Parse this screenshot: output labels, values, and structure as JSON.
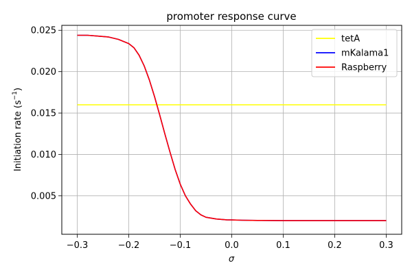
{
  "chart_data": {
    "type": "line",
    "title": "promoter response curve",
    "xlabel": "σ",
    "ylabel": "Initiation rate (s",
    "ylabel_sup": "−1",
    "ylabel_close": ")",
    "xlim": [
      -0.33,
      0.33
    ],
    "ylim": [
      0.00035,
      0.0256
    ],
    "xticks": [
      -0.3,
      -0.2,
      -0.1,
      0.0,
      0.1,
      0.2,
      0.3
    ],
    "xtick_labels": [
      "−0.3",
      "−0.2",
      "−0.1",
      "0.0",
      "0.1",
      "0.2",
      "0.3"
    ],
    "yticks": [
      0.005,
      0.01,
      0.015,
      0.02,
      0.025
    ],
    "ytick_labels": [
      "0.005",
      "0.010",
      "0.015",
      "0.020",
      "0.025"
    ],
    "grid": true,
    "legend_position": "top-right",
    "x": [
      -0.3,
      -0.28,
      -0.26,
      -0.24,
      -0.22,
      -0.2,
      -0.19,
      -0.18,
      -0.17,
      -0.16,
      -0.15,
      -0.14,
      -0.13,
      -0.12,
      -0.11,
      -0.1,
      -0.09,
      -0.08,
      -0.07,
      -0.06,
      -0.05,
      -0.04,
      -0.03,
      -0.02,
      -0.01,
      0.0,
      0.02,
      0.05,
      0.1,
      0.15,
      0.2,
      0.25,
      0.3
    ],
    "series": [
      {
        "name": "tetA",
        "color": "#ffff00",
        "values": [
          0.016,
          0.016,
          0.016,
          0.016,
          0.016,
          0.016,
          0.016,
          0.016,
          0.016,
          0.016,
          0.016,
          0.016,
          0.016,
          0.016,
          0.016,
          0.016,
          0.016,
          0.016,
          0.016,
          0.016,
          0.016,
          0.016,
          0.016,
          0.016,
          0.016,
          0.016,
          0.016,
          0.016,
          0.016,
          0.016,
          0.016,
          0.016,
          0.016
        ]
      },
      {
        "name": "mKalama1",
        "color": "#0000ff",
        "values": [
          0.0244,
          0.0244,
          0.0243,
          0.0242,
          0.0239,
          0.0234,
          0.0229,
          0.022,
          0.0207,
          0.019,
          0.017,
          0.0148,
          0.0125,
          0.0103,
          0.0082,
          0.0064,
          0.005,
          0.004,
          0.0032,
          0.0027,
          0.0024,
          0.0023,
          0.0022,
          0.00215,
          0.0021,
          0.00208,
          0.00205,
          0.00202,
          0.002,
          0.002,
          0.002,
          0.002,
          0.002
        ]
      },
      {
        "name": "Raspberry",
        "color": "#ff0000",
        "values": [
          0.0244,
          0.0244,
          0.0243,
          0.0242,
          0.0239,
          0.0234,
          0.0229,
          0.022,
          0.0207,
          0.019,
          0.017,
          0.0148,
          0.0125,
          0.0103,
          0.0082,
          0.0064,
          0.005,
          0.004,
          0.0032,
          0.0027,
          0.0024,
          0.0023,
          0.0022,
          0.00215,
          0.0021,
          0.00208,
          0.00205,
          0.00202,
          0.002,
          0.002,
          0.002,
          0.002,
          0.002
        ]
      }
    ]
  }
}
